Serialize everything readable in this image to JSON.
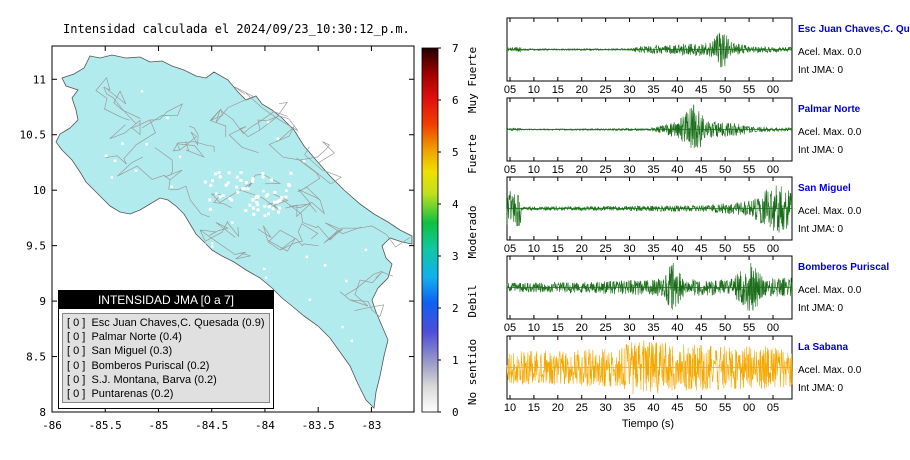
{
  "title": "Intensidad calculada el 2024/09/23_10:30:12_p.m.",
  "map": {
    "x_ticks": [
      "-86",
      "-85.5",
      "-85",
      "-84.5",
      "-84",
      "-83.5",
      "-83"
    ],
    "y_ticks": [
      "11",
      "10.5",
      "10",
      "9.5",
      "9",
      "8.5",
      "8"
    ],
    "land_color": "#b2ebee",
    "road_color": "#999999"
  },
  "colorbar": {
    "ticks": [
      "0",
      "1",
      "2",
      "3",
      "4",
      "5",
      "6",
      "7"
    ],
    "labels": [
      "No sentido",
      "Debil",
      "Moderado",
      "Fuerte",
      "Muy Fuerte"
    ]
  },
  "legend": {
    "header": "INTENSIDAD JMA [0 a 7]",
    "rows": [
      "[ 0 ]  Esc Juan Chaves,C. Quesada (0.9)",
      "[ 0 ]  Palmar Norte (0.4)",
      "[ 0 ]  San Miguel (0.3)",
      "[ 0 ]  Bomberos Puriscal (0.2)",
      "[ 0 ]  S.J. Montana, Barva (0.2)",
      "[ 0 ]  Puntarenas (0.2)"
    ]
  },
  "waveforms": [
    {
      "station": "Esc Juan Chaves,C. Qu",
      "accel_label": "Acel. Max. 0.0",
      "int_label": "Int JMA: 0",
      "color": "#1a6e1a",
      "ticks": [
        "05",
        "10",
        "15",
        "20",
        "25",
        "30",
        "35",
        "40",
        "45",
        "50",
        "55",
        "00"
      ]
    },
    {
      "station": "Palmar Norte",
      "accel_label": "Acel. Max. 0.0",
      "int_label": "Int JMA: 0",
      "color": "#1a6e1a",
      "ticks": [
        "05",
        "10",
        "15",
        "20",
        "25",
        "30",
        "35",
        "40",
        "45",
        "50",
        "55",
        "00"
      ]
    },
    {
      "station": "San Miguel",
      "accel_label": "Acel. Max. 0.0",
      "int_label": "Int JMA: 0",
      "color": "#1a6e1a",
      "ticks": [
        "05",
        "10",
        "15",
        "20",
        "25",
        "30",
        "35",
        "40",
        "45",
        "50",
        "55",
        "00"
      ]
    },
    {
      "station": "Bomberos Puriscal",
      "accel_label": "Acel. Max. 0.0",
      "int_label": "Int JMA: 0",
      "color": "#1a6e1a",
      "ticks": [
        "05",
        "10",
        "15",
        "20",
        "25",
        "30",
        "35",
        "40",
        "45",
        "50",
        "55",
        "00"
      ]
    },
    {
      "station": "La Sabana",
      "accel_label": "Acel. Max. 0.0",
      "int_label": "Int JMA: 0",
      "color": "#f5a800",
      "ticks": [
        "10",
        "15",
        "20",
        "25",
        "30",
        "35",
        "40",
        "45",
        "50",
        "55",
        "00",
        "05"
      ]
    }
  ],
  "time_label": "Tiempo (s)",
  "chart_data": [
    {
      "type": "heatmap",
      "title": "Intensidad calculada el 2024/09/23_10:30:12_p.m.",
      "xlim": [
        -86,
        -82.6
      ],
      "ylim": [
        8,
        11.3
      ],
      "x_ticks": [
        -86,
        -85.5,
        -85,
        -84.5,
        -84,
        -83.5,
        -83
      ],
      "y_ticks": [
        8,
        8.5,
        9,
        9.5,
        10,
        10.5,
        11
      ],
      "colorbar_range": [
        0,
        7
      ],
      "values": "uniform 0 (No sentido) over land"
    },
    {
      "type": "table",
      "title": "INTENSIDAD JMA [0 a 7]",
      "rows": [
        {
          "jma": 0,
          "station": "Esc Juan Chaves,C. Quesada",
          "value": 0.9
        },
        {
          "jma": 0,
          "station": "Palmar Norte",
          "value": 0.4
        },
        {
          "jma": 0,
          "station": "San Miguel",
          "value": 0.3
        },
        {
          "jma": 0,
          "station": "Bomberos Puriscal",
          "value": 0.2
        },
        {
          "jma": 0,
          "station": "S.J. Montana, Barva",
          "value": 0.2
        },
        {
          "jma": 0,
          "station": "Puntarenas",
          "value": 0.2
        }
      ]
    },
    {
      "type": "line",
      "xlabel": "Tiempo (s)",
      "series": [
        {
          "name": "Esc Juan Chaves,C. Qu",
          "peak_max_accel": 0.0,
          "jma": 0
        },
        {
          "name": "Palmar Norte",
          "peak_max_accel": 0.0,
          "jma": 0
        },
        {
          "name": "San Miguel",
          "peak_max_accel": 0.0,
          "jma": 0
        },
        {
          "name": "Bomberos Puriscal",
          "peak_max_accel": 0.0,
          "jma": 0
        },
        {
          "name": "La Sabana",
          "peak_max_accel": 0.0,
          "jma": 0
        }
      ]
    }
  ]
}
